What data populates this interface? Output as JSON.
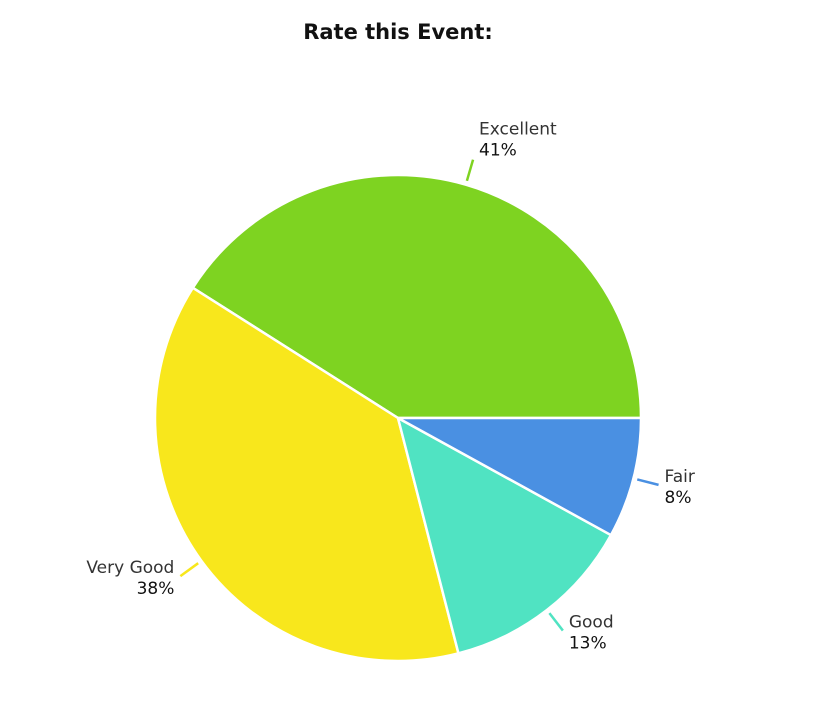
{
  "chart_data": {
    "type": "pie",
    "title": "Rate this Event:",
    "categories": [
      "Excellent",
      "Very Good",
      "Good",
      "Fair"
    ],
    "values": [
      41,
      38,
      13,
      8
    ],
    "value_labels": [
      "41%",
      "38%",
      "13%",
      "8%"
    ],
    "colors": [
      "#7ed321",
      "#f8e71c",
      "#50e3c2",
      "#4a90e2"
    ]
  }
}
